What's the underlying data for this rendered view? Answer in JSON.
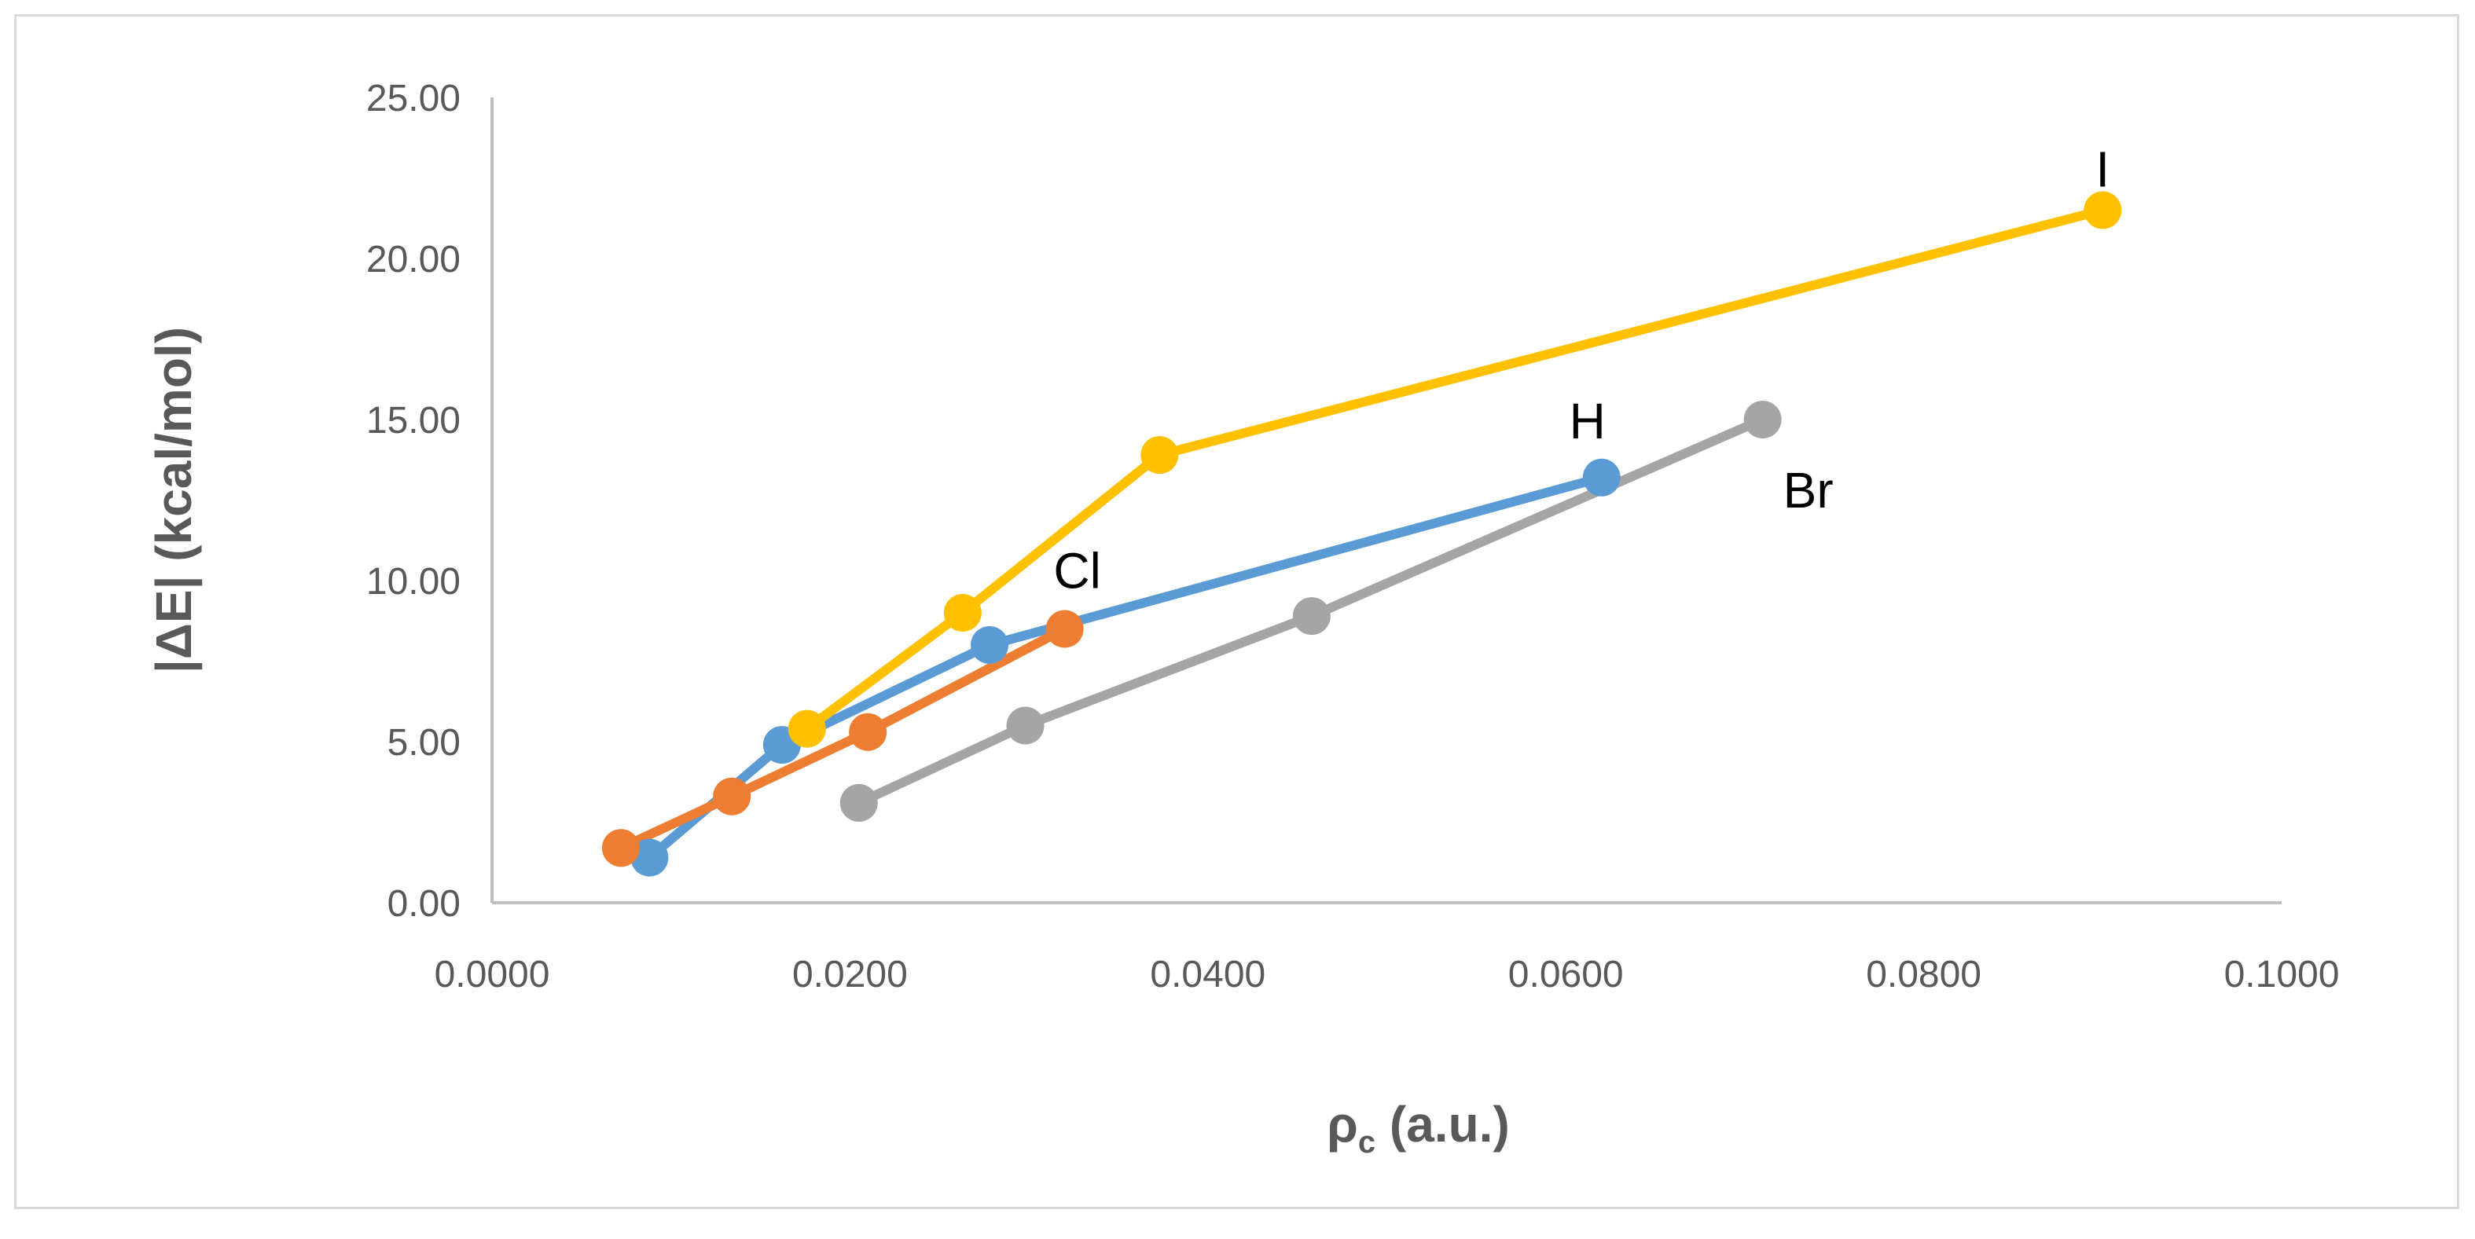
{
  "chart_data": {
    "type": "line",
    "xlabel": "ρ",
    "xlabel_sub": "c",
    "xlabel_suffix": " (a.u.)",
    "ylabel": "|ΔE| (kcal/mol)",
    "xlim": [
      0.0,
      0.1
    ],
    "ylim": [
      0.0,
      25.0
    ],
    "xticks": [
      0.0,
      0.02,
      0.04,
      0.06,
      0.08,
      0.1
    ],
    "xtick_labels": [
      "0.0000",
      "0.0200",
      "0.0400",
      "0.0600",
      "0.0800",
      "0.1000"
    ],
    "yticks": [
      0,
      5,
      10,
      15,
      20,
      25
    ],
    "ytick_labels": [
      "0.00",
      "5.00",
      "10.00",
      "15.00",
      "20.00",
      "25.00"
    ],
    "grid": false,
    "legend": "none",
    "series": [
      {
        "name": "H",
        "color": "#5B9BD5",
        "x": [
          0.0088,
          0.0162,
          0.0278,
          0.062
        ],
        "y": [
          1.4,
          4.9,
          8.0,
          13.2
        ]
      },
      {
        "name": "Cl",
        "color": "#ED7D31",
        "x": [
          0.0072,
          0.0134,
          0.021,
          0.032
        ],
        "y": [
          1.7,
          3.3,
          5.3,
          8.5
        ]
      },
      {
        "name": "Br",
        "color": "#A5A5A5",
        "x": [
          0.0205,
          0.0298,
          0.0458,
          0.071
        ],
        "y": [
          3.1,
          5.5,
          8.9,
          15.0
        ]
      },
      {
        "name": "I",
        "color": "#FFC000",
        "x": [
          0.0176,
          0.0263,
          0.0373,
          0.09
        ],
        "y": [
          5.4,
          9.0,
          13.9,
          21.5
        ]
      }
    ]
  }
}
